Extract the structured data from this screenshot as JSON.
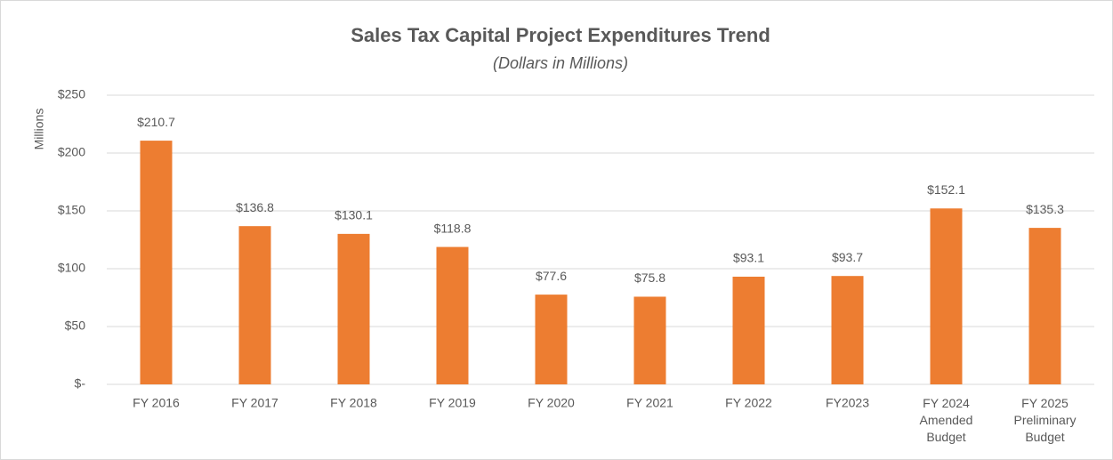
{
  "chart_data": {
    "type": "bar",
    "title": "Sales Tax Capital Project Expenditures Trend",
    "subtitle": "(Dollars in Millions)",
    "y_label": "Millions",
    "categories": [
      "FY 2016",
      "FY 2017",
      "FY 2018",
      "FY 2019",
      "FY 2020",
      "FY 2021",
      "FY 2022",
      "FY2023",
      "FY 2024\nAmended\nBudget",
      "FY 2025\nPreliminary\nBudget"
    ],
    "values": [
      210.7,
      136.8,
      130.1,
      118.8,
      77.6,
      75.8,
      93.1,
      93.7,
      152.1,
      135.3
    ],
    "value_labels": [
      "$210.7",
      "$136.8",
      "$130.1",
      "$118.8",
      "$77.6",
      "$75.8",
      "$93.1",
      "$93.7",
      "$152.1",
      "$135.3"
    ],
    "color": "#ed7d31",
    "ylim": [
      0,
      250
    ],
    "yticks": [
      {
        "value": 0,
        "label": "$-"
      },
      {
        "value": 50,
        "label": "$50"
      },
      {
        "value": 100,
        "label": "$100"
      },
      {
        "value": 150,
        "label": "$150"
      },
      {
        "value": 200,
        "label": "$200"
      },
      {
        "value": 250,
        "label": "$250"
      }
    ],
    "grid": true
  }
}
